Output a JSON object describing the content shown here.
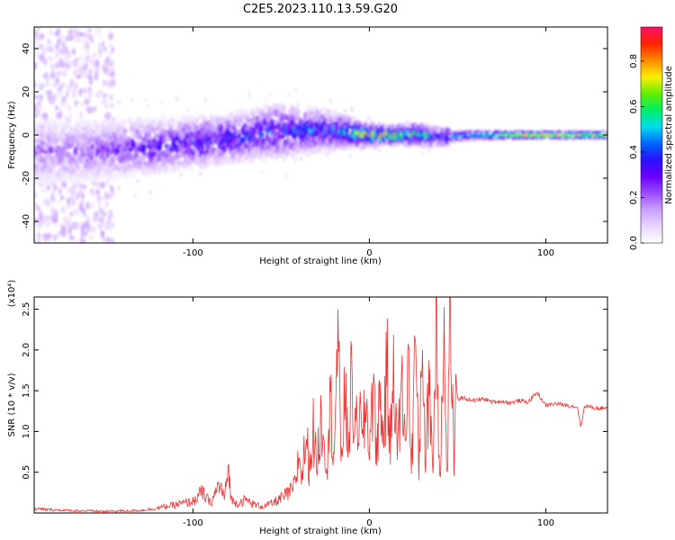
{
  "title": "C2E5.2023.110.13.59.G20",
  "colors": {
    "snr_line": "#ee3333",
    "axis": "#000000",
    "colormap": [
      "#ffffff",
      "#e9d6ff",
      "#c9a0ff",
      "#9a4dff",
      "#6a00ff",
      "#2a10ff",
      "#0066ff",
      "#00ddee",
      "#00ee66",
      "#66ee00",
      "#ffee00",
      "#ff8800",
      "#ff2200",
      "#ff1166"
    ]
  },
  "chart_data": [
    {
      "type": "heatmap",
      "name": "spectrogram",
      "title": "C2E5.2023.110.13.59.G20",
      "xlabel": "Height of straight line (km)",
      "ylabel": "Frequency (Hz)",
      "xlim": [
        -190,
        135
      ],
      "ylim": [
        -50,
        50
      ],
      "xticks": [
        -100,
        0,
        100
      ],
      "yticks": [
        -40,
        -20,
        0,
        20,
        40
      ],
      "colorbar": {
        "label": "Normalized spectral amplitude",
        "range": [
          0.0,
          0.95
        ],
        "ticks": [
          0.0,
          0.2,
          0.4,
          0.6,
          0.8
        ]
      },
      "band_profile": [
        {
          "x": -190,
          "center": -8,
          "halfwidth": 12,
          "peak": 0.2
        },
        {
          "x": -150,
          "center": -7,
          "halfwidth": 11,
          "peak": 0.25
        },
        {
          "x": -120,
          "center": -5,
          "halfwidth": 10,
          "peak": 0.35
        },
        {
          "x": -80,
          "center": -2,
          "halfwidth": 9,
          "peak": 0.4
        },
        {
          "x": -50,
          "center": 2,
          "halfwidth": 10,
          "peak": 0.42
        },
        {
          "x": -20,
          "center": 2,
          "halfwidth": 7,
          "peak": 0.45
        },
        {
          "x": 0,
          "center": 0,
          "halfwidth": 4,
          "peak": 0.75
        },
        {
          "x": 10,
          "center": 0,
          "halfwidth": 3,
          "peak": 0.92
        },
        {
          "x": 30,
          "center": 0,
          "halfwidth": 4,
          "peak": 0.6
        },
        {
          "x": 40,
          "center": -1,
          "halfwidth": 3,
          "peak": 0.5
        },
        {
          "x": 60,
          "center": 0,
          "halfwidth": 2.5,
          "peak": 0.55
        },
        {
          "x": 90,
          "center": 0,
          "halfwidth": 2,
          "peak": 0.85
        },
        {
          "x": 135,
          "center": 0,
          "halfwidth": 2,
          "peak": 0.75
        }
      ]
    },
    {
      "type": "line",
      "name": "snr",
      "xlabel": "Height of straight line (km)",
      "ylabel": "SNR (10 * v/v)",
      "y_multiplier": "(x10⁴)",
      "xlim": [
        -190,
        135
      ],
      "ylim": [
        0,
        2.65
      ],
      "xticks": [
        -100,
        0,
        100
      ],
      "yticks": [
        0.5,
        1.0,
        1.5,
        2.0,
        2.5
      ],
      "ytick_labels": [
        "0.5",
        "1.0",
        "1.5",
        "2.0",
        "2.5"
      ],
      "series": [
        {
          "x": [
            -190,
            -170,
            -150,
            -130,
            -120,
            -110,
            -100,
            -95,
            -90,
            -85,
            -82,
            -80,
            -78,
            -75,
            -70,
            -65,
            -60,
            -55,
            -50,
            -45,
            -42,
            -40,
            -38,
            -36,
            -34,
            -32,
            -30,
            -27,
            -24,
            -22,
            -20,
            -18,
            -16,
            -14,
            -12,
            -10,
            -8,
            -6,
            -4,
            -2,
            0,
            2,
            4,
            6,
            8,
            10,
            12,
            14,
            16,
            18,
            20,
            22,
            24,
            26,
            28,
            30,
            32,
            34,
            36,
            38,
            40,
            42,
            44,
            46,
            48,
            49,
            50,
            52,
            55,
            60,
            65,
            70,
            75,
            80,
            85,
            90,
            95,
            100,
            105,
            110,
            115,
            118,
            120,
            122,
            125,
            130,
            135
          ],
          "y": [
            0.05,
            0.03,
            0.02,
            0.03,
            0.06,
            0.1,
            0.14,
            0.25,
            0.12,
            0.35,
            0.18,
            0.55,
            0.15,
            0.12,
            0.16,
            0.1,
            0.08,
            0.12,
            0.18,
            0.25,
            0.35,
            0.7,
            0.45,
            0.95,
            0.55,
            1.05,
            0.6,
            1.2,
            0.65,
            1.35,
            0.8,
            2.05,
            0.75,
            1.4,
            0.85,
            1.65,
            0.9,
            1.3,
            0.8,
            1.35,
            0.85,
            1.55,
            0.8,
            1.4,
            0.95,
            1.75,
            0.75,
            2.1,
            0.6,
            1.65,
            0.9,
            1.85,
            0.55,
            2.25,
            0.45,
            2.3,
            0.55,
            1.85,
            0.4,
            2.6,
            0.35,
            2.45,
            0.3,
            2.65,
            0.4,
            1.7,
            1.38,
            1.42,
            1.4,
            1.38,
            1.4,
            1.36,
            1.37,
            1.35,
            1.38,
            1.36,
            1.48,
            1.32,
            1.34,
            1.33,
            1.31,
            1.3,
            1.05,
            1.32,
            1.3,
            1.28,
            1.3
          ]
        }
      ]
    }
  ]
}
